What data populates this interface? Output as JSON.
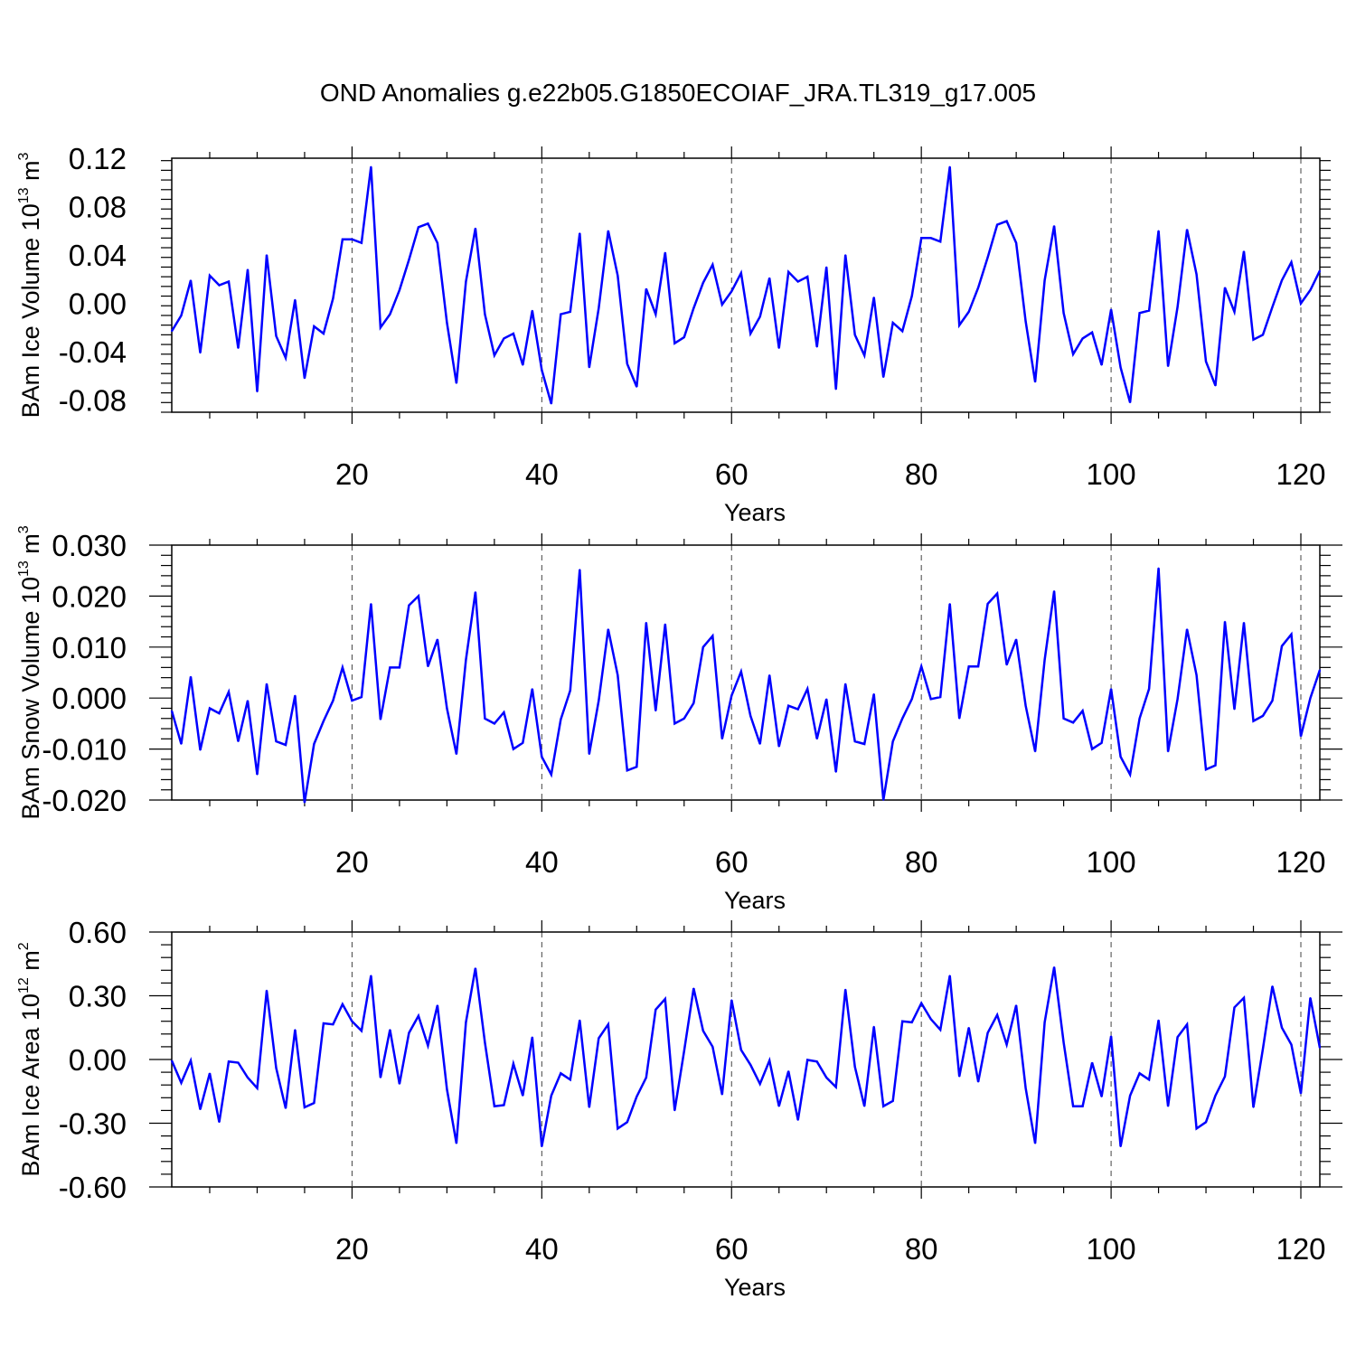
{
  "figure_title": "OND Anomalies g.e22b05.G1850ECOIAF_JRA.TL319_g17.005",
  "colors": {
    "line": "#0000ff",
    "axis": "#000000",
    "grid": "#444444",
    "background": "#ffffff"
  },
  "chart_data": [
    {
      "type": "line",
      "title": "OND Anomalies g.e22b05.G1850ECOIAF_JRA.TL319_g17.005",
      "xlabel": "Years",
      "ylabel": {
        "text": "BAm Ice Volume 10",
        "exponent": "13",
        "unit": " m",
        "unit_exponent": "3"
      },
      "xlim": [
        1,
        122
      ],
      "ylim": [
        -0.09,
        0.12
      ],
      "x_ticks": [
        20,
        40,
        60,
        80,
        100,
        120
      ],
      "x_tick_labels": [
        "20",
        "40",
        "60",
        "80",
        "100",
        "120"
      ],
      "y_ticks": [
        -0.08,
        -0.04,
        0.0,
        0.04,
        0.08,
        0.12
      ],
      "y_tick_labels": [
        "-0.08",
        "-0.04",
        "0.00",
        "0.04",
        "0.08",
        "0.12"
      ],
      "grid": "vertical dashed at major x ticks",
      "series": [
        {
          "name": "BAm Ice Volume",
          "x_start": 1,
          "values": [
            -0.023,
            -0.01,
            0.019,
            -0.041,
            0.023,
            0.015,
            0.018,
            -0.037,
            0.028,
            -0.073,
            0.04,
            -0.027,
            -0.045,
            0.003,
            -0.062,
            -0.019,
            -0.025,
            0.004,
            0.053,
            0.053,
            0.05,
            0.113,
            -0.02,
            -0.009,
            0.011,
            0.036,
            0.063,
            0.066,
            0.05,
            -0.016,
            -0.066,
            0.018,
            0.062,
            -0.009,
            -0.043,
            -0.029,
            -0.025,
            -0.051,
            -0.006,
            -0.055,
            -0.083,
            -0.009,
            -0.007,
            0.058,
            -0.053,
            -0.004,
            0.06,
            0.023,
            -0.05,
            -0.069,
            0.012,
            -0.009,
            0.042,
            -0.033,
            -0.028,
            -0.004,
            0.017,
            0.032,
            -0.001,
            0.01,
            0.025,
            -0.025,
            -0.011,
            0.021,
            -0.037,
            0.026,
            0.018,
            0.022,
            -0.036,
            0.03,
            -0.071,
            0.04,
            -0.026,
            -0.043,
            0.005,
            -0.061,
            -0.016,
            -0.023,
            0.006,
            0.054,
            0.054,
            0.051,
            0.113,
            -0.018,
            -0.007,
            0.013,
            0.038,
            0.065,
            0.068,
            0.05,
            -0.015,
            -0.065,
            0.019,
            0.064,
            -0.008,
            -0.042,
            -0.029,
            -0.024,
            -0.051,
            -0.005,
            -0.053,
            -0.082,
            -0.008,
            -0.006,
            0.06,
            -0.052,
            -0.003,
            0.061,
            0.024,
            -0.048,
            -0.068,
            0.013,
            -0.007,
            0.043,
            -0.03,
            -0.026,
            -0.003,
            0.019,
            0.034,
            0.0,
            0.011,
            0.027
          ]
        }
      ]
    },
    {
      "type": "line",
      "xlabel": "Years",
      "ylabel": {
        "text": "BAm Snow Volume 10",
        "exponent": "13",
        "unit": " m",
        "unit_exponent": "3"
      },
      "xlim": [
        1,
        122
      ],
      "ylim": [
        -0.02,
        0.03
      ],
      "x_ticks": [
        20,
        40,
        60,
        80,
        100,
        120
      ],
      "x_tick_labels": [
        "20",
        "40",
        "60",
        "80",
        "100",
        "120"
      ],
      "y_ticks": [
        -0.02,
        -0.01,
        0.0,
        0.01,
        0.02,
        0.03
      ],
      "y_tick_labels": [
        "-0.020",
        "-0.010",
        "0.000",
        "0.010",
        "0.020",
        "0.030"
      ],
      "grid": "vertical dashed at major x ticks",
      "series": [
        {
          "name": "BAm Snow Volume",
          "x_start": 1,
          "values": [
            -0.0025,
            -0.009,
            0.0042,
            -0.0102,
            -0.002,
            -0.003,
            0.0012,
            -0.0085,
            -0.0005,
            -0.015,
            0.0028,
            -0.0085,
            -0.0092,
            0.0005,
            -0.0205,
            -0.009,
            -0.0045,
            -0.0005,
            0.006,
            -0.0005,
            0.0002,
            0.0185,
            -0.0042,
            0.006,
            0.006,
            0.0182,
            0.02,
            0.0062,
            0.0115,
            -0.002,
            -0.011,
            0.0075,
            0.0208,
            -0.004,
            -0.005,
            -0.0028,
            -0.01,
            -0.0088,
            0.0018,
            -0.0115,
            -0.015,
            -0.0042,
            0.0015,
            0.0252,
            -0.011,
            -0.0005,
            0.0135,
            0.0045,
            -0.0142,
            -0.0135,
            0.0148,
            -0.0025,
            0.0145,
            -0.005,
            -0.004,
            -0.001,
            0.01,
            0.0122,
            -0.008,
            0.0005,
            0.0052,
            -0.0035,
            -0.009,
            0.0045,
            -0.0095,
            -0.0015,
            -0.0022,
            0.0018,
            -0.008,
            -0.0002,
            -0.0145,
            0.0028,
            -0.0085,
            -0.009,
            0.0008,
            -0.02,
            -0.0085,
            -0.004,
            -0.0002,
            0.0062,
            -0.0002,
            0.0002,
            0.0185,
            -0.004,
            0.0062,
            0.0062,
            0.0185,
            0.0205,
            0.0065,
            0.0115,
            -0.0015,
            -0.0105,
            0.0075,
            0.021,
            -0.004,
            -0.0048,
            -0.0025,
            -0.01,
            -0.0088,
            0.0018,
            -0.0115,
            -0.015,
            -0.004,
            0.0018,
            0.0255,
            -0.0105,
            -0.0002,
            0.0135,
            0.0045,
            -0.014,
            -0.0132,
            0.015,
            -0.0022,
            0.0148,
            -0.0045,
            -0.0035,
            -0.0005,
            0.0102,
            0.0125,
            -0.0075,
            0.0,
            0.0055
          ]
        }
      ]
    },
    {
      "type": "line",
      "xlabel": "Years",
      "ylabel": {
        "text": "BAm Ice Area 10",
        "exponent": "12",
        "unit": " m",
        "unit_exponent": "2"
      },
      "xlim": [
        1,
        122
      ],
      "ylim": [
        -0.6,
        0.6
      ],
      "x_ticks": [
        20,
        40,
        60,
        80,
        100,
        120
      ],
      "x_tick_labels": [
        "20",
        "40",
        "60",
        "80",
        "100",
        "120"
      ],
      "y_ticks": [
        -0.6,
        -0.3,
        0.0,
        0.3,
        0.6
      ],
      "y_tick_labels": [
        "-0.60",
        "-0.30",
        "0.00",
        "0.30",
        "0.60"
      ],
      "grid": "vertical dashed at major x ticks",
      "series": [
        {
          "name": "BAm Ice Area",
          "x_start": 1,
          "values": [
            -0.005,
            -0.11,
            -0.005,
            -0.235,
            -0.065,
            -0.295,
            -0.01,
            -0.015,
            -0.085,
            -0.135,
            0.325,
            -0.04,
            -0.23,
            0.14,
            -0.225,
            -0.205,
            0.17,
            0.165,
            0.26,
            0.18,
            0.135,
            0.395,
            -0.085,
            0.14,
            -0.115,
            0.125,
            0.205,
            0.065,
            0.255,
            -0.14,
            -0.395,
            0.175,
            0.43,
            0.08,
            -0.22,
            -0.215,
            -0.02,
            -0.17,
            0.105,
            -0.41,
            -0.17,
            -0.065,
            -0.095,
            0.185,
            -0.225,
            0.1,
            0.165,
            -0.325,
            -0.295,
            -0.175,
            -0.085,
            0.235,
            0.285,
            -0.24,
            0.04,
            0.335,
            0.135,
            0.06,
            -0.165,
            0.28,
            0.045,
            -0.025,
            -0.115,
            -0.005,
            -0.22,
            -0.055,
            -0.285,
            -0.002,
            -0.01,
            -0.085,
            -0.13,
            0.33,
            -0.035,
            -0.22,
            0.155,
            -0.22,
            -0.195,
            0.18,
            0.175,
            0.265,
            0.19,
            0.14,
            0.395,
            -0.08,
            0.15,
            -0.105,
            0.125,
            0.21,
            0.07,
            0.255,
            -0.135,
            -0.395,
            0.175,
            0.435,
            0.08,
            -0.22,
            -0.22,
            -0.015,
            -0.175,
            0.11,
            -0.41,
            -0.17,
            -0.065,
            -0.095,
            0.185,
            -0.22,
            0.105,
            0.165,
            -0.325,
            -0.295,
            -0.17,
            -0.08,
            0.245,
            0.29,
            -0.225,
            0.05,
            0.345,
            0.15,
            0.07,
            -0.16,
            0.29,
            0.055
          ]
        }
      ]
    }
  ]
}
